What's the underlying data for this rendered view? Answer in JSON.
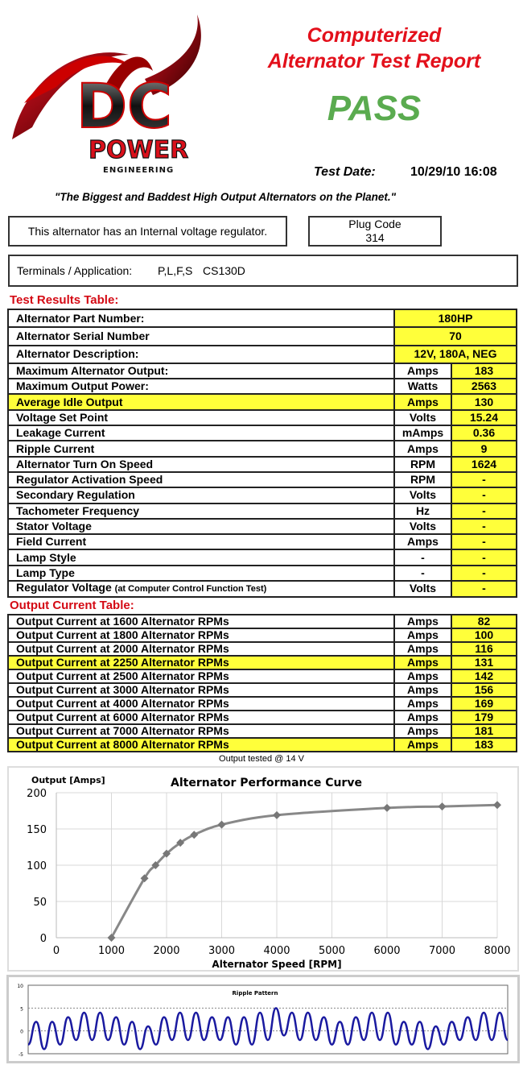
{
  "logo": {
    "text_main": "DC",
    "text_sub": "POWER",
    "text_tag": "ENGINEERING",
    "colors": {
      "red": "#d9101b",
      "black": "#111111"
    }
  },
  "header": {
    "title_line1": "Computerized",
    "title_line2": "Alternator Test Report",
    "result": "PASS",
    "result_color": "#5aab4f",
    "test_date_label": "Test Date:",
    "test_date_value": "10/29/10 16:08"
  },
  "tagline": "\"The Biggest and Baddest High Output Alternators on the Planet.\"",
  "regulator_note": "This alternator has an Internal voltage regulator.",
  "plug_code": {
    "label": "Plug Code",
    "value": "314"
  },
  "terminals": {
    "label": "Terminals / Application:",
    "terminals": "P,L,F,S",
    "application": "CS130D"
  },
  "test_results": {
    "heading": "Test Results Table:",
    "top_rows": [
      {
        "label": "Alternator Part Number:",
        "value": "180HP"
      },
      {
        "label": "Alternator Serial Number",
        "value": "70"
      },
      {
        "label": "Alternator Description:",
        "value": "12V, 180A, NEG"
      }
    ],
    "rows": [
      {
        "label": "Maximum Alternator Output:",
        "unit": "Amps",
        "value": "183"
      },
      {
        "label": "Maximum Output Power:",
        "unit": "Watts",
        "value": "2563"
      },
      {
        "label": "Average Idle Output",
        "unit": "Amps",
        "value": "130",
        "highlight": true
      },
      {
        "label": "Voltage Set Point",
        "unit": "Volts",
        "value": "15.24"
      },
      {
        "label": "Leakage Current",
        "unit": "mAmps",
        "value": "0.36"
      },
      {
        "label": "Ripple Current",
        "unit": "Amps",
        "value": "9"
      },
      {
        "label": "Alternator Turn On Speed",
        "unit": "RPM",
        "value": "1624"
      },
      {
        "label": "Regulator Activation Speed",
        "unit": "RPM",
        "value": "-"
      },
      {
        "label": "Secondary Regulation",
        "unit": "Volts",
        "value": "-"
      },
      {
        "label": "Tachometer Frequency",
        "unit": "Hz",
        "value": "-"
      },
      {
        "label": "Stator Voltage",
        "unit": "Volts",
        "value": "-"
      },
      {
        "label": "Field Current",
        "unit": "Amps",
        "value": "-"
      },
      {
        "label": "Lamp Style",
        "unit": "-",
        "value": "-"
      },
      {
        "label": "Lamp Type",
        "unit": "-",
        "value": "-"
      }
    ],
    "last_row": {
      "label": "Regulator Voltage",
      "note": "(at Computer Control Function Test)",
      "unit": "Volts",
      "value": "-"
    }
  },
  "output_current": {
    "heading": "Output Current Table:",
    "rows": [
      {
        "label": "Output Current at 1600 Alternator RPMs",
        "unit": "Amps",
        "value": "82"
      },
      {
        "label": "Output Current at 1800 Alternator RPMs",
        "unit": "Amps",
        "value": "100"
      },
      {
        "label": "Output Current at 2000 Alternator RPMs",
        "unit": "Amps",
        "value": "116"
      },
      {
        "label": "Output Current at 2250 Alternator RPMs",
        "unit": "Amps",
        "value": "131",
        "highlight": true
      },
      {
        "label": "Output Current at 2500 Alternator RPMs",
        "unit": "Amps",
        "value": "142"
      },
      {
        "label": "Output Current at 3000 Alternator RPMs",
        "unit": "Amps",
        "value": "156"
      },
      {
        "label": "Output Current at 4000 Alternator RPMs",
        "unit": "Amps",
        "value": "169"
      },
      {
        "label": "Output Current at 6000 Alternator RPMs",
        "unit": "Amps",
        "value": "179"
      },
      {
        "label": "Output Current at 7000 Alternator RPMs",
        "unit": "Amps",
        "value": "181"
      },
      {
        "label": "Output Current at 8000 Alternator RPMs",
        "unit": "Amps",
        "value": "183",
        "highlight": true
      }
    ],
    "footnote": "Output tested @ 14 V"
  },
  "chart_data": [
    {
      "type": "line",
      "title": "Alternator Performance Curve",
      "xlabel": "Alternator Speed [RPM]",
      "ylabel": "Output [Amps]",
      "x": [
        1000,
        1600,
        1800,
        2000,
        2250,
        2500,
        3000,
        4000,
        6000,
        7000,
        8000
      ],
      "y": [
        0,
        82,
        100,
        116,
        131,
        142,
        156,
        169,
        179,
        181,
        183
      ],
      "xlim": [
        0,
        8000
      ],
      "ylim": [
        0,
        200
      ],
      "xticks": [
        "0",
        "1000",
        "2000",
        "3000",
        "4000",
        "5000",
        "6000",
        "7000",
        "8000"
      ],
      "yticks": [
        "0",
        "50",
        "100",
        "150",
        "200"
      ],
      "grid": true,
      "marker": "diamond",
      "color": "#888888"
    },
    {
      "type": "line",
      "title": "Ripple Pattern",
      "ylim": [
        -5,
        10
      ],
      "yticks": [
        "-5",
        "0",
        "5",
        "10"
      ],
      "color": "#1a1aa0",
      "values": [
        -3,
        2,
        -4,
        2,
        -3,
        3,
        -2,
        4,
        -2,
        4,
        -2,
        3,
        -3,
        2,
        -4,
        1,
        -3,
        3,
        -2,
        4,
        -2,
        4,
        -2,
        3,
        -2,
        3,
        -3,
        3,
        -3,
        4,
        -2,
        5,
        -1,
        4,
        -2,
        4,
        -2,
        3,
        -3,
        2,
        -3,
        3,
        -2,
        4,
        -2,
        4,
        -3,
        2,
        -3,
        2,
        -4,
        1,
        -3,
        2,
        -2,
        3,
        -2,
        4,
        -2,
        4,
        -2
      ]
    }
  ]
}
